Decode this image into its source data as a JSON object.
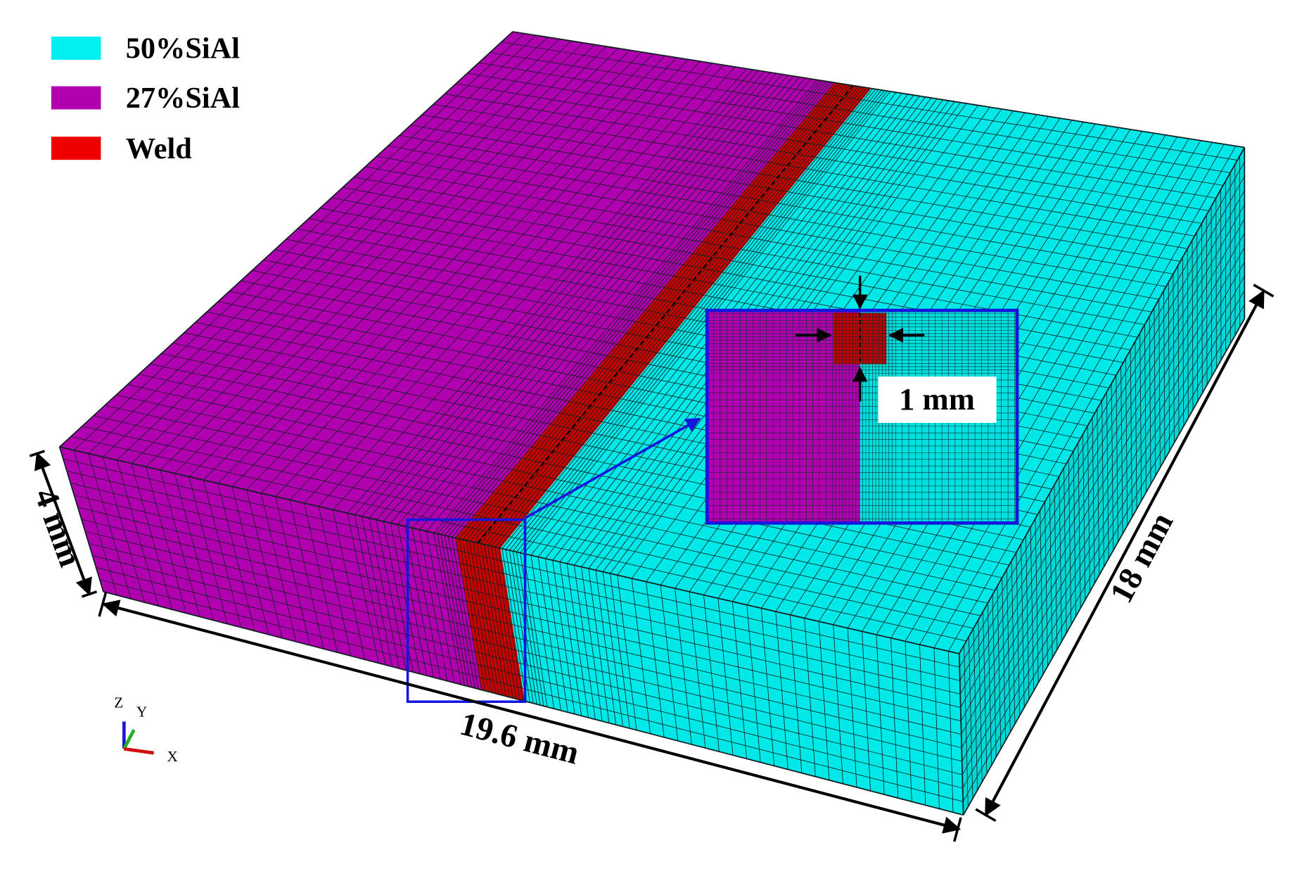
{
  "legend": [
    {
      "label": "50%SiAl"
    },
    {
      "label": "27%SiAl"
    },
    {
      "label": "Weld"
    }
  ],
  "dimensions": {
    "thickness": "4 mm",
    "width": "19.6 mm",
    "length": "18 mm",
    "weld_width": "1 mm"
  },
  "axes": {
    "z": "Z",
    "y": "Y",
    "x": "X"
  }
}
